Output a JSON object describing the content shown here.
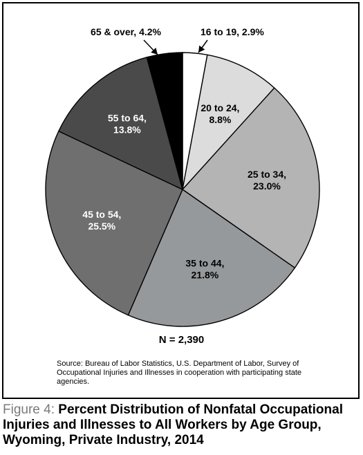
{
  "chart_data": {
    "type": "pie",
    "n_label": "N = 2,390",
    "source": "Source: Bureau of Labor Statistics, U.S. Department of Labor, Survey of Occupational Injuries and Illnesses in cooperation with participating state agencies.",
    "slices": [
      {
        "label": "16 to 19, 2.9%",
        "line1": "16 to 19, 2.9%",
        "line2": "",
        "value": 2.9,
        "color": "#ffffff",
        "text_color": "#000000"
      },
      {
        "label": "20 to 24, 8.8%",
        "line1": "20 to 24,",
        "line2": "8.8%",
        "value": 8.8,
        "color": "#dcdcdc",
        "text_color": "#000000"
      },
      {
        "label": "25 to 34, 23.0%",
        "line1": "25 to 34,",
        "line2": "23.0%",
        "value": 23.0,
        "color": "#b4b4b4",
        "text_color": "#000000"
      },
      {
        "label": "35 to 44, 21.8%",
        "line1": "35 to 44,",
        "line2": "21.8%",
        "value": 21.8,
        "color": "#96999b",
        "text_color": "#000000"
      },
      {
        "label": "45 to 54, 25.5%",
        "line1": "45 to 54,",
        "line2": "25.5%",
        "value": 25.5,
        "color": "#6f6f6f",
        "text_color": "#ffffff"
      },
      {
        "label": "55 to 64, 13.8%",
        "line1": "55 to 64,",
        "line2": "13.8%",
        "value": 13.8,
        "color": "#4a4a4a",
        "text_color": "#ffffff"
      },
      {
        "label": "65 & over, 4.2%",
        "line1": "65 & over, 4.2%",
        "line2": "",
        "value": 4.2,
        "color": "#000000",
        "text_color": "#000000"
      }
    ]
  },
  "caption": {
    "label": "Figure 4:",
    "title": "Percent Distribution of Nonfatal Occupational Injuries and Illnesses to All Workers by Age Group, Wyoming, Private Industry, 2014"
  }
}
